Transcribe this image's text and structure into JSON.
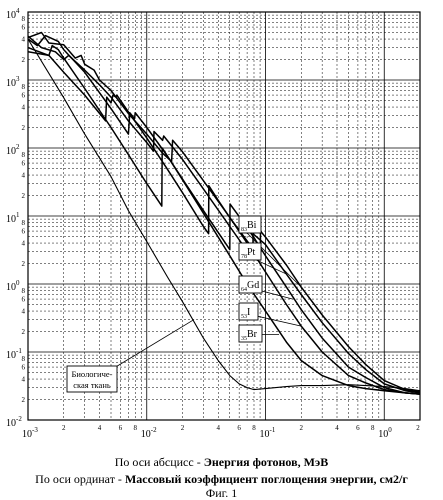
{
  "chart_data": {
    "type": "line",
    "x_scale": "log",
    "y_scale": "log",
    "xlim": [
      0.001,
      2
    ],
    "ylim": [
      0.01,
      10000
    ],
    "grid": true,
    "x_major_labels": [
      {
        "v": 0.001,
        "base": "10",
        "exp": "-3"
      },
      {
        "v": 0.01,
        "base": "10",
        "exp": "-2"
      },
      {
        "v": 0.1,
        "base": "10",
        "exp": "-1"
      },
      {
        "v": 1,
        "base": "10",
        "exp": "0"
      }
    ],
    "y_major_labels": [
      {
        "v": 0.01,
        "base": "10",
        "exp": "-2"
      },
      {
        "v": 0.1,
        "base": "10",
        "exp": "-1"
      },
      {
        "v": 1,
        "base": "10",
        "exp": "0"
      },
      {
        "v": 10,
        "base": "10",
        "exp": "1"
      },
      {
        "v": 100,
        "base": "10",
        "exp": "2"
      },
      {
        "v": 1000,
        "base": "10",
        "exp": "3"
      },
      {
        "v": 10000,
        "base": "10",
        "exp": "4"
      }
    ],
    "minor_tick_labels": [
      "2",
      "4",
      "6",
      "8"
    ],
    "end_tick_label": "2",
    "series": [
      {
        "name": "83Bi",
        "sub": "83",
        "sym": "Bi",
        "z": 83,
        "points": [
          [
            0.001,
            4200
          ],
          [
            0.0013,
            5000
          ],
          [
            0.0015,
            3500
          ],
          [
            0.002,
            3300
          ],
          [
            0.0025,
            2100
          ],
          [
            0.0028,
            2300
          ],
          [
            0.003,
            1700
          ],
          [
            0.0036,
            1400
          ],
          [
            0.004,
            1000
          ],
          [
            0.005,
            700
          ],
          [
            0.007,
            320
          ],
          [
            0.01,
            160
          ],
          [
            0.0135,
            85
          ],
          [
            0.0162,
            63
          ],
          [
            0.0165,
            130
          ],
          [
            0.02,
            88
          ],
          [
            0.03,
            33
          ],
          [
            0.05,
            9.5
          ],
          [
            0.07,
            4.3
          ],
          [
            0.0906,
            2.4
          ],
          [
            0.0907,
            6.0
          ],
          [
            0.1,
            4.9
          ],
          [
            0.15,
            1.9
          ],
          [
            0.2,
            0.9
          ],
          [
            0.3,
            0.35
          ],
          [
            0.5,
            0.12
          ],
          [
            0.7,
            0.065
          ],
          [
            1,
            0.038
          ],
          [
            1.5,
            0.028
          ],
          [
            2,
            0.026
          ]
        ]
      },
      {
        "name": "78Pt",
        "sub": "78",
        "sym": "Pt",
        "z": 78,
        "points": [
          [
            0.001,
            4400
          ],
          [
            0.0013,
            3000
          ],
          [
            0.0017,
            2600
          ],
          [
            0.002,
            2000
          ],
          [
            0.0022,
            2300
          ],
          [
            0.003,
            1400
          ],
          [
            0.004,
            850
          ],
          [
            0.005,
            560
          ],
          [
            0.007,
            250
          ],
          [
            0.01,
            120
          ],
          [
            0.0114,
            90
          ],
          [
            0.0115,
            175
          ],
          [
            0.0136,
            130
          ],
          [
            0.0139,
            150
          ],
          [
            0.02,
            68
          ],
          [
            0.03,
            25
          ],
          [
            0.05,
            7.0
          ],
          [
            0.0784,
            2.3
          ],
          [
            0.0785,
            5.5
          ],
          [
            0.1,
            3.8
          ],
          [
            0.15,
            1.4
          ],
          [
            0.2,
            0.7
          ],
          [
            0.3,
            0.27
          ],
          [
            0.5,
            0.095
          ],
          [
            0.7,
            0.055
          ],
          [
            1,
            0.034
          ],
          [
            1.5,
            0.027
          ],
          [
            2,
            0.025
          ]
        ]
      },
      {
        "name": "64Gd",
        "sub": "64",
        "sym": "Gd",
        "z": 64,
        "points": [
          [
            0.001,
            4000
          ],
          [
            0.0012,
            3200
          ],
          [
            0.0014,
            4500
          ],
          [
            0.0018,
            3700
          ],
          [
            0.002,
            2800
          ],
          [
            0.003,
            1300
          ],
          [
            0.005,
            380
          ],
          [
            0.007,
            160
          ],
          [
            0.0072,
            330
          ],
          [
            0.0079,
            270
          ],
          [
            0.008,
            330
          ],
          [
            0.01,
            200
          ],
          [
            0.015,
            75
          ],
          [
            0.02,
            35
          ],
          [
            0.03,
            12
          ],
          [
            0.05,
            3.2
          ],
          [
            0.0502,
            15
          ],
          [
            0.06,
            9.8
          ],
          [
            0.08,
            4.8
          ],
          [
            0.1,
            2.6
          ],
          [
            0.15,
            0.9
          ],
          [
            0.2,
            0.42
          ],
          [
            0.3,
            0.16
          ],
          [
            0.5,
            0.06
          ],
          [
            0.7,
            0.042
          ],
          [
            1,
            0.03
          ],
          [
            1.5,
            0.025
          ],
          [
            2,
            0.024
          ]
        ]
      },
      {
        "name": "53I",
        "sub": "53",
        "sym": "I",
        "z": 53,
        "points": [
          [
            0.001,
            3000
          ],
          [
            0.0015,
            2300
          ],
          [
            0.002,
            1300
          ],
          [
            0.003,
            600
          ],
          [
            0.0045,
            250
          ],
          [
            0.0046,
            560
          ],
          [
            0.005,
            460
          ],
          [
            0.0052,
            600
          ],
          [
            0.0055,
            560
          ],
          [
            0.0056,
            600
          ],
          [
            0.007,
            340
          ],
          [
            0.01,
            140
          ],
          [
            0.015,
            48
          ],
          [
            0.02,
            22
          ],
          [
            0.03,
            7.0
          ],
          [
            0.0332,
            5.5
          ],
          [
            0.0333,
            28
          ],
          [
            0.04,
            17
          ],
          [
            0.05,
            9.5
          ],
          [
            0.07,
            4.0
          ],
          [
            0.1,
            1.5
          ],
          [
            0.15,
            0.5
          ],
          [
            0.2,
            0.24
          ],
          [
            0.3,
            0.1
          ],
          [
            0.5,
            0.045
          ],
          [
            0.7,
            0.035
          ],
          [
            1,
            0.028
          ],
          [
            1.5,
            0.025
          ],
          [
            2,
            0.024
          ]
        ]
      },
      {
        "name": "35Br",
        "sub": "35",
        "sym": "Br",
        "z": 35,
        "points": [
          [
            0.001,
            2600
          ],
          [
            0.0015,
            2300
          ],
          [
            0.0016,
            3200
          ],
          [
            0.0018,
            2800
          ],
          [
            0.002,
            2100
          ],
          [
            0.003,
            750
          ],
          [
            0.005,
            200
          ],
          [
            0.007,
            80
          ],
          [
            0.01,
            30
          ],
          [
            0.0134,
            14
          ],
          [
            0.0135,
            100
          ],
          [
            0.015,
            75
          ],
          [
            0.02,
            34
          ],
          [
            0.03,
            11
          ],
          [
            0.05,
            2.6
          ],
          [
            0.07,
            1.0
          ],
          [
            0.1,
            0.4
          ],
          [
            0.15,
            0.14
          ],
          [
            0.2,
            0.075
          ],
          [
            0.3,
            0.045
          ],
          [
            0.5,
            0.032
          ],
          [
            0.7,
            0.029
          ],
          [
            1,
            0.027
          ],
          [
            1.5,
            0.025
          ],
          [
            2,
            0.024
          ]
        ]
      },
      {
        "name": "Биологическая ткань",
        "z": 0,
        "points": [
          [
            0.001,
            4000
          ],
          [
            0.002,
            550
          ],
          [
            0.003,
            160
          ],
          [
            0.005,
            38
          ],
          [
            0.007,
            12
          ],
          [
            0.01,
            4.2
          ],
          [
            0.015,
            1.25
          ],
          [
            0.02,
            0.55
          ],
          [
            0.03,
            0.16
          ],
          [
            0.04,
            0.075
          ],
          [
            0.05,
            0.045
          ],
          [
            0.06,
            0.034
          ],
          [
            0.07,
            0.03
          ],
          [
            0.08,
            0.028
          ],
          [
            0.1,
            0.029
          ],
          [
            0.15,
            0.031
          ],
          [
            0.2,
            0.032
          ],
          [
            0.3,
            0.032
          ],
          [
            0.5,
            0.033
          ],
          [
            0.7,
            0.032
          ],
          [
            1,
            0.031
          ],
          [
            1.5,
            0.029
          ],
          [
            2,
            0.027
          ]
        ]
      }
    ],
    "annotations": [
      {
        "series": "83Bi",
        "sub": "83",
        "sym": "Bi"
      },
      {
        "series": "78Pt",
        "sub": "78",
        "sym": "Pt"
      },
      {
        "series": "64Gd",
        "sub": "64",
        "sym": "Gd"
      },
      {
        "series": "53I",
        "sub": "53",
        "sym": "I"
      },
      {
        "series": "35Br",
        "sub": "35",
        "sym": "Br"
      },
      {
        "series": "Биологическая ткань",
        "line1": "Биологиче-",
        "line2": "ская ткань"
      }
    ]
  },
  "caption": {
    "x_prefix": "По оси абсцисс - ",
    "x_bold": "Энергия фотонов, МэВ",
    "y_prefix": "По оси ординат - ",
    "y_bold": "Массовый коэффициент поглощения энергии, см2/г",
    "figure": "Фиг. 1"
  }
}
